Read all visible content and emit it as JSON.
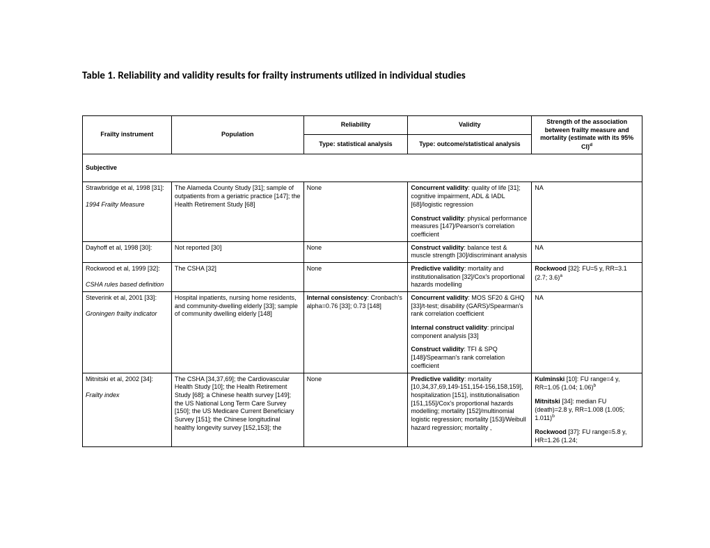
{
  "title": "Table 1. Reliability and validity results for frailty instruments utilized in individual studies",
  "head": {
    "instrument": "Frailty instrument",
    "population": "Population",
    "reliability": "Reliability",
    "validity": "Validity",
    "strength_line1": "Strength of the association between frailty measure and mortality (estimate with its 95% CI)",
    "strength_sup": "d",
    "rel_sub": "Type: statistical analysis",
    "val_sub": "Type: outcome/statistical analysis"
  },
  "section": "Subjective",
  "rows": [
    {
      "instr_author": "Strawbridge et al, 1998 [31]:",
      "instr_name": "1994 Frailty Measure",
      "population": "The Alameda County Study [31]; sample of outpatients from a geriatric practice [147]; the Health Retirement Study [68]",
      "reliability": [
        {
          "plain": "None"
        }
      ],
      "validity": [
        {
          "bold": "Concurrent validity",
          "rest": ": quality of life [31]; cognitive impairment, ADL & IADL [68]/logistic regression"
        },
        {
          "bold": "Construct validity",
          "rest": ": physical performance measures [147]/Pearson's correlation coefficient"
        }
      ],
      "strength": [
        {
          "plain": "NA"
        }
      ]
    },
    {
      "instr_author": "Dayhoff et al, 1998 [30]:",
      "instr_name": "",
      "population": "Not reported [30]",
      "reliability": [
        {
          "plain": "None"
        }
      ],
      "validity": [
        {
          "bold": "Construct validity",
          "rest": ": balance test & muscle strength [30]/discriminant analysis"
        }
      ],
      "strength": [
        {
          "plain": "NA"
        }
      ]
    },
    {
      "instr_author": "Rockwood et al, 1999 [32]:",
      "instr_name": "CSHA rules based definition",
      "population": "The CSHA [32]",
      "reliability": [
        {
          "plain": "None"
        }
      ],
      "validity": [
        {
          "bold": "Predictive validity",
          "rest": ": mortality and institutionalisation [32]/Cox's proportional hazards modelling"
        }
      ],
      "strength": [
        {
          "bold": "Rockwood",
          "rest": " [32]: FU=5 y, RR=3.1 (2.7; 3.6)",
          "sup": "a"
        }
      ]
    },
    {
      "instr_author": "Steverink et al, 2001 [33]:",
      "instr_name": "Groningen frailty indicator",
      "population": "Hospital inpatients, nursing home residents, and community-dwelling elderly [33]; sample of community dwelling elderly [148]",
      "reliability": [
        {
          "bold": "Internal consistency",
          "rest": ": Cronbach's alpha=0.76 [33]; 0.73 [148]"
        }
      ],
      "validity": [
        {
          "bold": "Concurrent validity",
          "rest": ": MOS SF20 & GHQ [33]/t-test; disability (GARS)/Spearman's rank correlation coefficient"
        },
        {
          "bold": "Internal construct validity",
          "rest": ": principal component analysis [33]"
        },
        {
          "bold": "Construct validity",
          "rest": ": TFI & SPQ [148]/Spearman's rank correlation coefficient"
        }
      ],
      "strength": [
        {
          "plain": "NA"
        }
      ]
    },
    {
      "instr_author": "Mitnitski et al, 2002 [34]:",
      "instr_name": "Frailty index",
      "population": "The CSHA [34,37,69]; the Cardiovascular Health Study [10]; the Health Retirement Study [68]; a Chinese health survey [149]; the US National Long Term Care Survey [150]; the US Medicare Current Beneficiary Survey [151]; the Chinese longitudinal healthy longevity survey [152,153]; the",
      "reliability": [
        {
          "plain": "None"
        }
      ],
      "validity": [
        {
          "bold": "Predictive validity",
          "rest": ": mortality [10,34,37,69,149-151,154-156,158,159], hospitalization [151], institutionalisation [151,155]/Cox's proportional hazards modelling; mortality [152]/multinomial logistic regression; mortality [153]/Weibull hazard regression; mortality ,"
        }
      ],
      "strength": [
        {
          "bold": "Kulminski",
          "rest": " [10]: FU range=4 y, RR=1.05 (1.04; 1.06)",
          "sup": "b"
        },
        {
          "bold": "Mitnitski",
          "rest": " [34]: median FU (death)=2.8 y, RR=1.008 (1.005; 1.011)",
          "sup": "b"
        },
        {
          "bold": "Rockwood",
          "rest": " [37]: FU range=5.8 y, HR=1.26 (1.24;"
        }
      ]
    }
  ]
}
